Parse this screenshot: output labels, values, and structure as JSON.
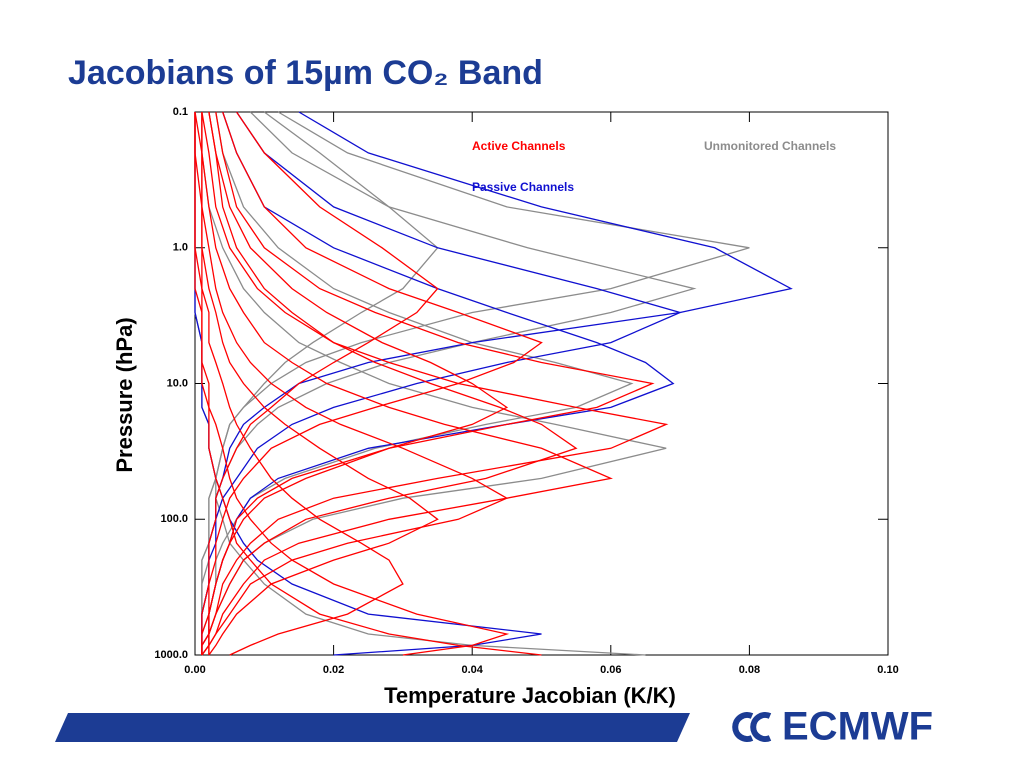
{
  "chart_data": {
    "type": "profile",
    "title": "Jacobians of 15µm CO₂ Band",
    "x_label": "Temperature Jacobian (K/K)",
    "y_label": "Pressure (hPa)",
    "y_scale": "log",
    "y_reversed": true,
    "xlim": [
      0,
      0.1
    ],
    "xticks": [
      {
        "value": 0,
        "label": "0.00"
      },
      {
        "value": 0.02,
        "label": "0.02"
      },
      {
        "value": 0.04,
        "label": "0.04"
      },
      {
        "value": 0.06,
        "label": "0.06"
      },
      {
        "value": 0.08,
        "label": "0.08"
      },
      {
        "value": 0.1,
        "label": "0.10"
      }
    ],
    "ylim": [
      0.1,
      1000
    ],
    "yticks": [
      0.1,
      {
        "value": 1,
        "label": "1.0"
      },
      {
        "value": 10,
        "label": "10.0"
      },
      {
        "value": 100,
        "label": "100.0"
      },
      {
        "value": 1000,
        "label": "1000.0"
      }
    ],
    "pressure": [
      0.1,
      0.2,
      0.5,
      1,
      2,
      3,
      5,
      7,
      10,
      15,
      20,
      30,
      50,
      70,
      100,
      150,
      200,
      300,
      500,
      700,
      850,
      1000
    ],
    "groups": [
      {
        "name": "Active Channels",
        "color": "#ff0000",
        "profiles": [
          [
            0.003,
            0.004,
            0.006,
            0.01,
            0.018,
            0.026,
            0.038,
            0.05,
            0.066,
            0.058,
            0.045,
            0.028,
            0.014,
            0.009,
            0.006,
            0.005,
            0.004,
            0.003,
            0.002,
            0.002,
            0.001,
            0.001
          ],
          [
            0.001,
            0.002,
            0.003,
            0.005,
            0.009,
            0.013,
            0.02,
            0.028,
            0.038,
            0.055,
            0.068,
            0.06,
            0.035,
            0.02,
            0.012,
            0.008,
            0.006,
            0.004,
            0.003,
            0.002,
            0.002,
            0.001
          ],
          [
            0.001,
            0.001,
            0.002,
            0.003,
            0.005,
            0.007,
            0.01,
            0.014,
            0.019,
            0.028,
            0.036,
            0.05,
            0.06,
            0.045,
            0.028,
            0.015,
            0.01,
            0.007,
            0.004,
            0.003,
            0.002,
            0.002
          ],
          [
            0.002,
            0.003,
            0.004,
            0.006,
            0.01,
            0.014,
            0.02,
            0.026,
            0.034,
            0.044,
            0.05,
            0.055,
            0.042,
            0.028,
            0.016,
            0.01,
            0.007,
            0.005,
            0.003,
            0.002,
            0.002,
            0.001
          ],
          [
            0.004,
            0.006,
            0.01,
            0.016,
            0.028,
            0.038,
            0.05,
            0.046,
            0.038,
            0.026,
            0.018,
            0.011,
            0.007,
            0.005,
            0.004,
            0.003,
            0.003,
            0.002,
            0.002,
            0.001,
            0.001,
            0.001
          ],
          [
            0.001,
            0.001,
            0.001,
            0.002,
            0.003,
            0.004,
            0.006,
            0.008,
            0.011,
            0.016,
            0.021,
            0.03,
            0.04,
            0.045,
            0.038,
            0.022,
            0.014,
            0.008,
            0.005,
            0.003,
            0.002,
            0.002
          ],
          [
            0,
            0.001,
            0.001,
            0.001,
            0.002,
            0.003,
            0.004,
            0.005,
            0.007,
            0.01,
            0.013,
            0.018,
            0.025,
            0.031,
            0.035,
            0.028,
            0.02,
            0.011,
            0.006,
            0.004,
            0.003,
            0.002
          ],
          [
            0,
            0,
            0.001,
            0.001,
            0.001,
            0.002,
            0.002,
            0.003,
            0.004,
            0.005,
            0.006,
            0.008,
            0.011,
            0.014,
            0.018,
            0.024,
            0.028,
            0.03,
            0.022,
            0.012,
            0.008,
            0.005
          ],
          [
            0,
            0,
            0,
            0,
            0.001,
            0.001,
            0.001,
            0.001,
            0.002,
            0.002,
            0.003,
            0.004,
            0.005,
            0.006,
            0.008,
            0.011,
            0.014,
            0.02,
            0.032,
            0.045,
            0.04,
            0.03
          ],
          [
            0.006,
            0.01,
            0.018,
            0.027,
            0.035,
            0.032,
            0.025,
            0.02,
            0.015,
            0.011,
            0.008,
            0.006,
            0.004,
            0.003,
            0.003,
            0.002,
            0.002,
            0.002,
            0.001,
            0.001,
            0.001,
            0.001
          ],
          [
            0.002,
            0.003,
            0.005,
            0.008,
            0.014,
            0.019,
            0.027,
            0.034,
            0.04,
            0.045,
            0.04,
            0.028,
            0.016,
            0.01,
            0.007,
            0.005,
            0.004,
            0.003,
            0.002,
            0.002,
            0.001,
            0.001
          ],
          [
            0,
            0,
            0,
            0,
            0,
            0.001,
            0.001,
            0.001,
            0.001,
            0.002,
            0.002,
            0.002,
            0.003,
            0.004,
            0.005,
            0.006,
            0.008,
            0.011,
            0.018,
            0.028,
            0.038,
            0.05
          ]
        ]
      },
      {
        "name": "Unmonitored Channels",
        "color": "#8c8c8c",
        "profiles": [
          [
            0.012,
            0.022,
            0.045,
            0.08,
            0.06,
            0.04,
            0.024,
            0.016,
            0.011,
            0.007,
            0.005,
            0.004,
            0.003,
            0.002,
            0.002,
            0.002,
            0.001,
            0.001,
            0.001,
            0.001,
            0.001,
            0.001
          ],
          [
            0.008,
            0.014,
            0.028,
            0.048,
            0.072,
            0.06,
            0.04,
            0.028,
            0.019,
            0.012,
            0.009,
            0.006,
            0.004,
            0.003,
            0.003,
            0.002,
            0.002,
            0.001,
            0.001,
            0.001,
            0.001,
            0.001
          ],
          [
            0.003,
            0.004,
            0.007,
            0.012,
            0.02,
            0.028,
            0.04,
            0.052,
            0.063,
            0.055,
            0.042,
            0.026,
            0.013,
            0.008,
            0.006,
            0.004,
            0.003,
            0.003,
            0.002,
            0.001,
            0.001,
            0.001
          ],
          [
            0.001,
            0.001,
            0.002,
            0.004,
            0.007,
            0.01,
            0.015,
            0.021,
            0.028,
            0.04,
            0.052,
            0.068,
            0.05,
            0.03,
            0.017,
            0.01,
            0.007,
            0.005,
            0.003,
            0.002,
            0.002,
            0.001
          ],
          [
            0,
            0,
            0,
            0,
            0,
            0,
            0.001,
            0.001,
            0.001,
            0.001,
            0.002,
            0.002,
            0.003,
            0.003,
            0.004,
            0.005,
            0.007,
            0.01,
            0.016,
            0.025,
            0.04,
            0.065
          ],
          [
            0.01,
            0.018,
            0.028,
            0.035,
            0.03,
            0.024,
            0.017,
            0.013,
            0.01,
            0.007,
            0.005,
            0.004,
            0.003,
            0.002,
            0.002,
            0.002,
            0.001,
            0.001,
            0.001,
            0.001,
            0.001,
            0.001
          ]
        ]
      },
      {
        "name": "Passive Channels",
        "color": "#1010d0",
        "profiles": [
          [
            0.015,
            0.025,
            0.05,
            0.075,
            0.086,
            0.07,
            0.04,
            0.025,
            0.015,
            0.01,
            0.007,
            0.005,
            0.004,
            0.003,
            0.003,
            0.002,
            0.002,
            0.002,
            0.001,
            0.001,
            0.001,
            0.001
          ],
          [
            0.004,
            0.006,
            0.01,
            0.02,
            0.035,
            0.045,
            0.058,
            0.065,
            0.069,
            0.06,
            0.045,
            0.025,
            0.012,
            0.008,
            0.006,
            0.005,
            0.004,
            0.003,
            0.002,
            0.002,
            0.001,
            0.001
          ],
          [
            0,
            0,
            0,
            0,
            0,
            0,
            0.001,
            0.001,
            0.001,
            0.001,
            0.002,
            0.002,
            0.003,
            0.004,
            0.005,
            0.007,
            0.009,
            0.014,
            0.025,
            0.05,
            0.04,
            0.02
          ],
          [
            0.006,
            0.01,
            0.02,
            0.035,
            0.058,
            0.07,
            0.06,
            0.045,
            0.032,
            0.02,
            0.014,
            0.009,
            0.006,
            0.004,
            0.003,
            0.003,
            0.002,
            0.002,
            0.001,
            0.001,
            0.001,
            0.001
          ]
        ]
      }
    ]
  },
  "logo": "ECMWF"
}
